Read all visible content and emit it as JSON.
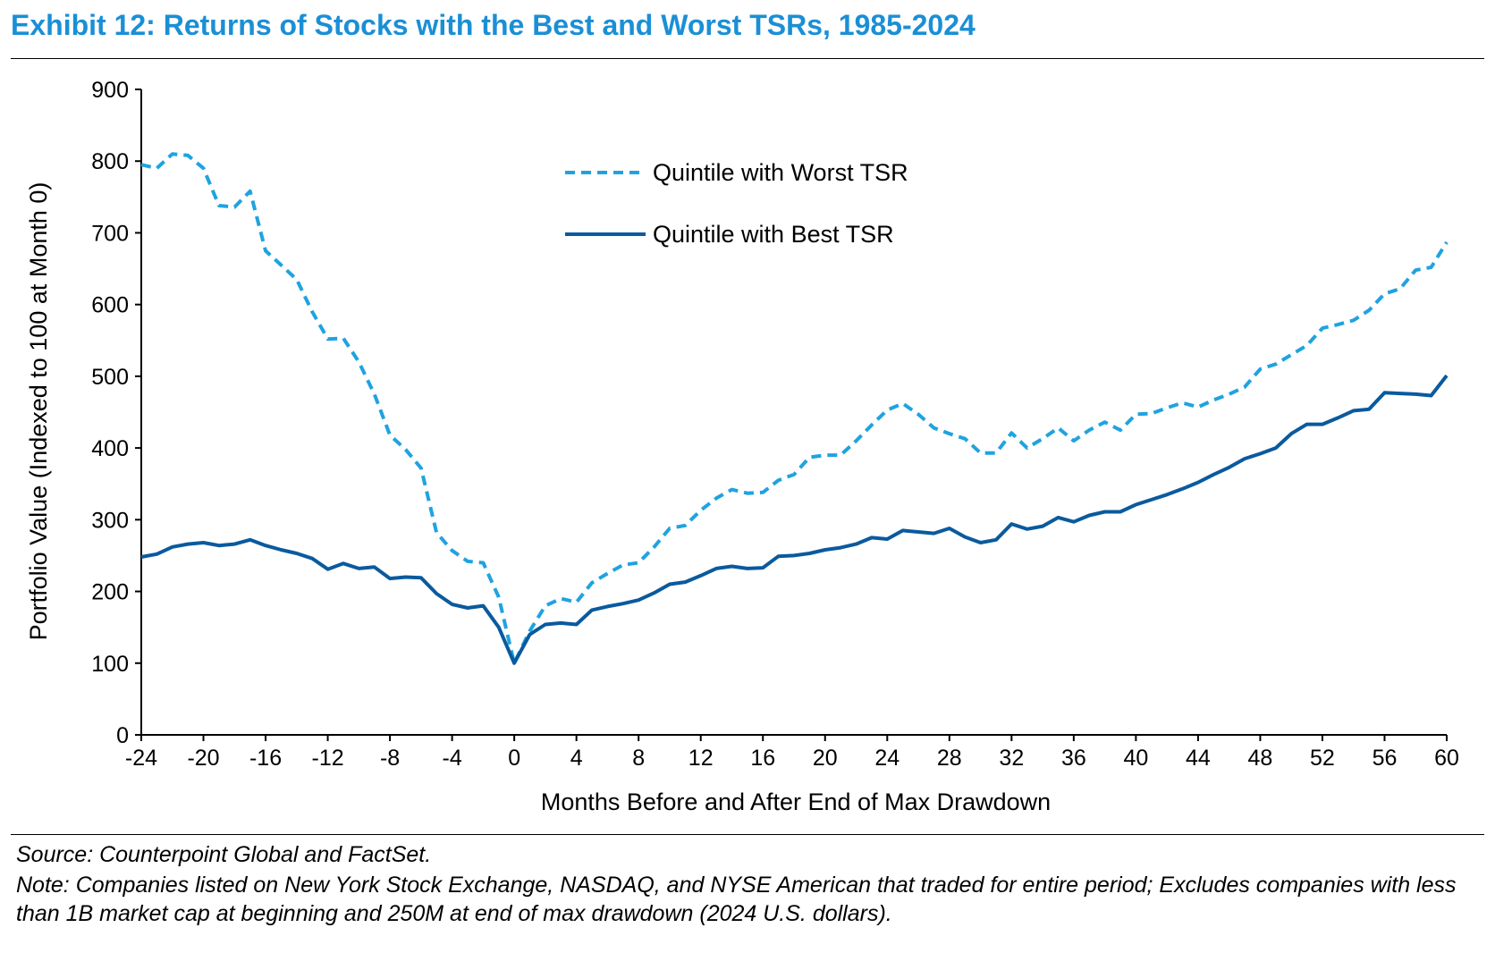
{
  "title": "Exhibit 12: Returns of Stocks with the Best and Worst TSRs, 1985-2024",
  "source": "Source: Counterpoint Global and FactSet.",
  "note": "Note: Companies listed on New York Stock Exchange, NASDAQ, and NYSE American that traded for entire period; Excludes companies with less than 1B market cap at beginning and 250M at end of max drawdown (2024 U.S. dollars).",
  "colors": {
    "title": "#1a8fd6",
    "worst": "#1fa3e0",
    "best": "#0a5a9e"
  },
  "chart_data": {
    "type": "line",
    "xlabel": "Months Before and After End of Max Drawdown",
    "ylabel": "Portfolio Value (Indexed to 100 at Month 0)",
    "xlim": [
      -24,
      60
    ],
    "ylim": [
      0,
      900
    ],
    "xticks": [
      -24,
      -20,
      -16,
      -12,
      -8,
      -4,
      0,
      4,
      8,
      12,
      16,
      20,
      24,
      28,
      32,
      36,
      40,
      44,
      48,
      52,
      56,
      60
    ],
    "yticks": [
      0,
      100,
      200,
      300,
      400,
      500,
      600,
      700,
      800,
      900
    ],
    "grid": false,
    "legend": "top-center",
    "x_start": -24,
    "series": [
      {
        "name": "Quintile with Worst TSR",
        "style": "dashed",
        "color": "#1fa3e0",
        "values": [
          795,
          790,
          810,
          808,
          790,
          738,
          736,
          758,
          675,
          655,
          635,
          590,
          552,
          553,
          520,
          475,
          418,
          398,
          372,
          282,
          257,
          242,
          240,
          192,
          100,
          145,
          180,
          190,
          185,
          212,
          225,
          237,
          240,
          262,
          288,
          292,
          313,
          330,
          342,
          337,
          338,
          355,
          363,
          387,
          390,
          390,
          410,
          432,
          453,
          462,
          447,
          428,
          420,
          413,
          393,
          393,
          421,
          400,
          413,
          428,
          410,
          425,
          436,
          425,
          447,
          448,
          456,
          463,
          457,
          467,
          475,
          485,
          510,
          517,
          530,
          543,
          567,
          572,
          578,
          592,
          615,
          622,
          648,
          652,
          687
        ]
      },
      {
        "name": "Quintile with Best TSR",
        "style": "solid",
        "color": "#0a5a9e",
        "values": [
          248,
          252,
          262,
          266,
          268,
          264,
          266,
          272,
          264,
          258,
          253,
          246,
          231,
          239,
          232,
          234,
          218,
          220,
          219,
          197,
          182,
          177,
          180,
          150,
          100,
          140,
          154,
          156,
          154,
          174,
          179,
          183,
          188,
          198,
          210,
          213,
          222,
          232,
          235,
          232,
          233,
          249,
          250,
          253,
          258,
          261,
          266,
          275,
          273,
          285,
          283,
          281,
          288,
          276,
          268,
          272,
          294,
          287,
          291,
          303,
          297,
          306,
          311,
          311,
          321,
          328,
          335,
          343,
          352,
          363,
          373,
          385,
          392,
          400,
          420,
          433,
          433,
          442,
          452,
          454,
          477,
          476,
          475,
          473,
          501
        ]
      }
    ]
  }
}
